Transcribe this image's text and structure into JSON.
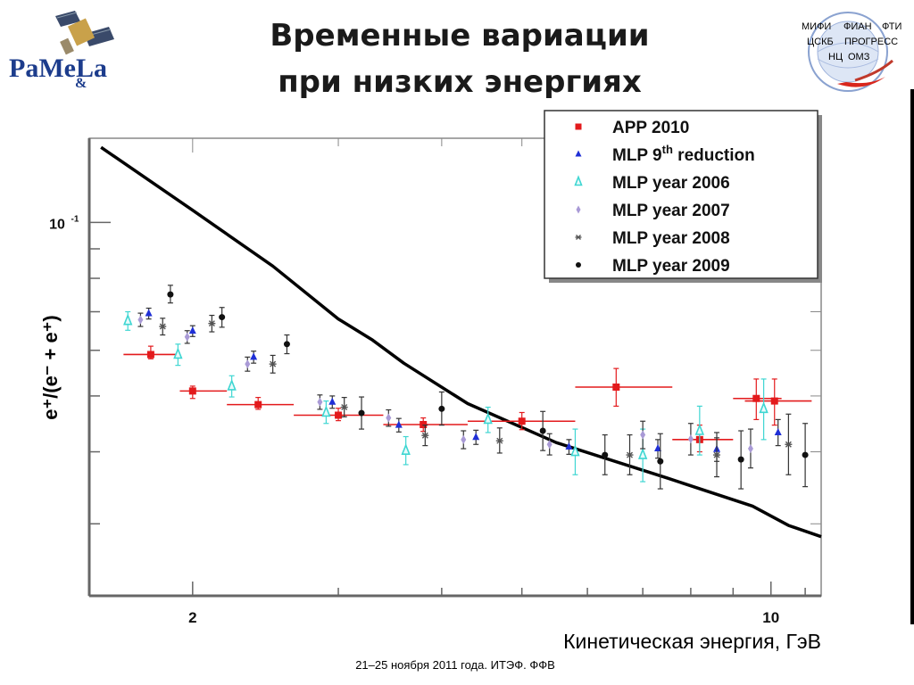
{
  "slide": {
    "title_line1": "Временные вариации",
    "title_line2": "при низких энергиях",
    "logo_left_text": "PaMeLa",
    "logo_left_amp": "&",
    "orgs": [
      "МИФИ",
      "ФИАН",
      "ФТИ",
      "ЦСКБ",
      "ПРОГРЕСС",
      "НЦ",
      "ОМЗ"
    ],
    "footer": "21–25 ноября 2011 года. ИТЭФ. ФФВ"
  },
  "chart_data": {
    "type": "scatter",
    "x_scale": "log",
    "y_scale": "log",
    "xlim": [
      1.5,
      11.5
    ],
    "ylim": [
      0.0225,
      0.14
    ],
    "xlabel": "Кинетическая энергия, ГэВ",
    "ylabel": "e⁺/(e⁻ + e⁺)",
    "x_ticklabels": [
      {
        "value": 2,
        "label": "2"
      },
      {
        "value": 10,
        "label": "10"
      }
    ],
    "y_ticklabels": [
      {
        "value": 0.1,
        "label": "10",
        "exp": "-1"
      }
    ],
    "legend_position": "top-right",
    "series": [
      {
        "name": "APP 2010",
        "marker": "square",
        "color": "#e31a1c",
        "points": [
          {
            "x": 1.78,
            "y": 0.059,
            "xlo": 1.65,
            "xhi": 1.93,
            "ylo": 0.058,
            "yhi": 0.061
          },
          {
            "x": 2.0,
            "y": 0.051,
            "xlo": 1.93,
            "xhi": 2.2,
            "ylo": 0.0495,
            "yhi": 0.052
          },
          {
            "x": 2.4,
            "y": 0.0483,
            "xlo": 2.2,
            "xhi": 2.65,
            "ylo": 0.0474,
            "yhi": 0.0497
          },
          {
            "x": 3.0,
            "y": 0.0463,
            "xlo": 2.65,
            "xhi": 3.4,
            "ylo": 0.0453,
            "yhi": 0.0476
          },
          {
            "x": 3.8,
            "y": 0.0446,
            "xlo": 3.4,
            "xhi": 4.3,
            "ylo": 0.0434,
            "yhi": 0.0458
          },
          {
            "x": 5.0,
            "y": 0.0452,
            "xlo": 4.3,
            "xhi": 5.8,
            "ylo": 0.0437,
            "yhi": 0.0468
          },
          {
            "x": 6.5,
            "y": 0.0518,
            "xlo": 5.8,
            "xhi": 7.6,
            "ylo": 0.048,
            "yhi": 0.0558
          },
          {
            "x": 8.2,
            "y": 0.042,
            "xlo": 7.6,
            "xhi": 9.0,
            "ylo": 0.04,
            "yhi": 0.0445
          },
          {
            "x": 9.6,
            "y": 0.0495,
            "xlo": 9.0,
            "xhi": 10.3,
            "ylo": 0.0455,
            "yhi": 0.0535
          },
          {
            "x": 10.1,
            "y": 0.049,
            "xlo": 9.3,
            "xhi": 11.2,
            "ylo": 0.0445,
            "yhi": 0.0535
          }
        ]
      },
      {
        "name": "MLP 9th reduction",
        "marker": "triangle",
        "color": "#1f2fd6",
        "points": [
          {
            "x": 1.77,
            "y": 0.0695,
            "ylo": 0.068,
            "yhi": 0.071
          },
          {
            "x": 2.0,
            "y": 0.0648,
            "ylo": 0.0634,
            "yhi": 0.0662
          },
          {
            "x": 2.37,
            "y": 0.0584,
            "ylo": 0.057,
            "yhi": 0.0598
          },
          {
            "x": 2.95,
            "y": 0.0488,
            "ylo": 0.0476,
            "yhi": 0.05
          },
          {
            "x": 3.55,
            "y": 0.0445,
            "ylo": 0.0433,
            "yhi": 0.0457
          },
          {
            "x": 4.4,
            "y": 0.0424,
            "ylo": 0.0412,
            "yhi": 0.0436
          },
          {
            "x": 5.7,
            "y": 0.0408,
            "ylo": 0.0396,
            "yhi": 0.042
          },
          {
            "x": 7.3,
            "y": 0.0405,
            "ylo": 0.039,
            "yhi": 0.042
          },
          {
            "x": 8.6,
            "y": 0.0404,
            "ylo": 0.0385,
            "yhi": 0.0423
          },
          {
            "x": 10.2,
            "y": 0.0432,
            "ylo": 0.041,
            "yhi": 0.0455
          }
        ]
      },
      {
        "name": "MLP year 2006",
        "marker": "open-triangle",
        "color": "#3fd6d2",
        "points": [
          {
            "x": 1.67,
            "y": 0.0675,
            "ylo": 0.065,
            "yhi": 0.07
          },
          {
            "x": 1.92,
            "y": 0.059,
            "ylo": 0.0565,
            "yhi": 0.0615
          },
          {
            "x": 2.23,
            "y": 0.052,
            "ylo": 0.0498,
            "yhi": 0.0542
          },
          {
            "x": 2.9,
            "y": 0.0468,
            "ylo": 0.0448,
            "yhi": 0.049
          },
          {
            "x": 3.62,
            "y": 0.0402,
            "ylo": 0.038,
            "yhi": 0.0425
          },
          {
            "x": 4.55,
            "y": 0.0455,
            "ylo": 0.0432,
            "yhi": 0.0478
          },
          {
            "x": 5.8,
            "y": 0.04,
            "ylo": 0.0365,
            "yhi": 0.0438
          },
          {
            "x": 7.0,
            "y": 0.0395,
            "ylo": 0.0355,
            "yhi": 0.0438
          },
          {
            "x": 8.2,
            "y": 0.0435,
            "ylo": 0.0395,
            "yhi": 0.048
          },
          {
            "x": 9.8,
            "y": 0.0475,
            "ylo": 0.042,
            "yhi": 0.0535
          }
        ]
      },
      {
        "name": "MLP year 2007",
        "marker": "diamond",
        "color": "#a99ad6",
        "points": [
          {
            "x": 1.73,
            "y": 0.0678,
            "ylo": 0.066,
            "yhi": 0.0696
          },
          {
            "x": 1.97,
            "y": 0.0633,
            "ylo": 0.0617,
            "yhi": 0.0649
          },
          {
            "x": 2.33,
            "y": 0.0568,
            "ylo": 0.0552,
            "yhi": 0.0584
          },
          {
            "x": 2.85,
            "y": 0.0488,
            "ylo": 0.0474,
            "yhi": 0.0502
          },
          {
            "x": 3.45,
            "y": 0.0458,
            "ylo": 0.0443,
            "yhi": 0.0473
          },
          {
            "x": 4.25,
            "y": 0.042,
            "ylo": 0.0405,
            "yhi": 0.0435
          },
          {
            "x": 5.4,
            "y": 0.0412,
            "ylo": 0.0395,
            "yhi": 0.043
          },
          {
            "x": 7.0,
            "y": 0.0428,
            "ylo": 0.0405,
            "yhi": 0.0452
          },
          {
            "x": 8.0,
            "y": 0.0421,
            "ylo": 0.0395,
            "yhi": 0.0448
          },
          {
            "x": 9.45,
            "y": 0.0405,
            "ylo": 0.0375,
            "yhi": 0.0438
          }
        ]
      },
      {
        "name": "MLP year 2008",
        "marker": "star",
        "color": "#555555",
        "points": [
          {
            "x": 1.84,
            "y": 0.066,
            "ylo": 0.0638,
            "yhi": 0.0682
          },
          {
            "x": 2.11,
            "y": 0.0668,
            "ylo": 0.0646,
            "yhi": 0.069
          },
          {
            "x": 2.5,
            "y": 0.0568,
            "ylo": 0.0548,
            "yhi": 0.0588
          },
          {
            "x": 3.05,
            "y": 0.0478,
            "ylo": 0.046,
            "yhi": 0.0497
          },
          {
            "x": 3.82,
            "y": 0.0427,
            "ylo": 0.041,
            "yhi": 0.0445
          },
          {
            "x": 4.7,
            "y": 0.0418,
            "ylo": 0.0398,
            "yhi": 0.044
          },
          {
            "x": 6.75,
            "y": 0.0395,
            "ylo": 0.0365,
            "yhi": 0.0428
          },
          {
            "x": 8.6,
            "y": 0.0395,
            "ylo": 0.0362,
            "yhi": 0.0432
          },
          {
            "x": 10.5,
            "y": 0.0412,
            "ylo": 0.0365,
            "yhi": 0.0465
          }
        ]
      },
      {
        "name": "MLP year 2009",
        "marker": "dot",
        "color": "#111111",
        "points": [
          {
            "x": 1.88,
            "y": 0.075,
            "ylo": 0.0725,
            "yhi": 0.0778
          },
          {
            "x": 2.17,
            "y": 0.0685,
            "ylo": 0.0658,
            "yhi": 0.0712
          },
          {
            "x": 2.6,
            "y": 0.0615,
            "ylo": 0.0592,
            "yhi": 0.0638
          },
          {
            "x": 3.2,
            "y": 0.0467,
            "ylo": 0.0438,
            "yhi": 0.0498
          },
          {
            "x": 4.0,
            "y": 0.0475,
            "ylo": 0.0445,
            "yhi": 0.0508
          },
          {
            "x": 5.3,
            "y": 0.0435,
            "ylo": 0.0402,
            "yhi": 0.047
          },
          {
            "x": 6.3,
            "y": 0.0395,
            "ylo": 0.0365,
            "yhi": 0.0428
          },
          {
            "x": 7.35,
            "y": 0.0385,
            "ylo": 0.0345,
            "yhi": 0.043
          },
          {
            "x": 9.2,
            "y": 0.0388,
            "ylo": 0.0345,
            "yhi": 0.0435
          },
          {
            "x": 11.0,
            "y": 0.0395,
            "ylo": 0.0348,
            "yhi": 0.0448
          }
        ]
      }
    ],
    "curve": [
      {
        "x": 1.55,
        "y": 0.135
      },
      {
        "x": 2.0,
        "y": 0.105
      },
      {
        "x": 2.5,
        "y": 0.084
      },
      {
        "x": 3.0,
        "y": 0.068
      },
      {
        "x": 3.3,
        "y": 0.0625
      },
      {
        "x": 3.6,
        "y": 0.057
      },
      {
        "x": 4.3,
        "y": 0.0485
      },
      {
        "x": 5.5,
        "y": 0.0415
      },
      {
        "x": 7.5,
        "y": 0.036
      },
      {
        "x": 9.5,
        "y": 0.0322
      },
      {
        "x": 10.5,
        "y": 0.0298
      },
      {
        "x": 11.5,
        "y": 0.0285
      }
    ]
  }
}
